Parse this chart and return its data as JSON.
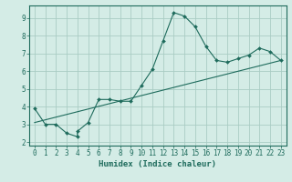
{
  "xlabel": "Humidex (Indice chaleur)",
  "bg_color": "#d4ece6",
  "grid_color": "#aaccc4",
  "line_color": "#1e6b5c",
  "x_data": [
    0,
    1,
    2,
    3,
    4,
    4,
    5,
    6,
    7,
    8,
    9,
    10,
    11,
    12,
    13,
    14,
    15,
    16,
    17,
    18,
    19,
    20,
    21,
    22,
    23
  ],
  "y_data": [
    3.9,
    3.0,
    3.0,
    2.5,
    2.3,
    2.6,
    3.1,
    4.4,
    4.4,
    4.3,
    4.3,
    5.2,
    6.1,
    7.7,
    9.3,
    9.1,
    8.5,
    7.4,
    6.6,
    6.5,
    6.7,
    6.9,
    7.3,
    7.1,
    6.6
  ],
  "trend_x": [
    0,
    23
  ],
  "trend_y": [
    3.1,
    6.6
  ],
  "xlim": [
    -0.5,
    23.5
  ],
  "ylim": [
    1.8,
    9.7
  ],
  "xticks": [
    0,
    1,
    2,
    3,
    4,
    5,
    6,
    7,
    8,
    9,
    10,
    11,
    12,
    13,
    14,
    15,
    16,
    17,
    18,
    19,
    20,
    21,
    22,
    23
  ],
  "yticks": [
    2,
    3,
    4,
    5,
    6,
    7,
    8,
    9
  ],
  "tick_fontsize": 5.5,
  "label_fontsize": 6.5
}
